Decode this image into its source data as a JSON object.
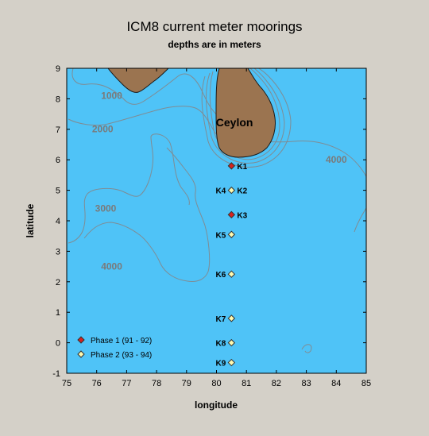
{
  "title": "ICM8 current meter moorings",
  "subtitle": "depths are in meters",
  "colors": {
    "sea": "#4fc3f7",
    "land": "#9b7450",
    "contour": "#7f8c94",
    "phase1": "#d8221e",
    "phase2": "#fffab0",
    "frame_bg": "#d4d0c8"
  },
  "chart_data": {
    "type": "scatter",
    "xlabel": "longitude",
    "ylabel": "latitude",
    "xlim": [
      75,
      85
    ],
    "ylim": [
      -1,
      9
    ],
    "x_ticks": [
      75,
      76,
      77,
      78,
      79,
      80,
      81,
      82,
      83,
      84,
      85
    ],
    "y_ticks": [
      -1,
      0,
      1,
      2,
      3,
      4,
      5,
      6,
      7,
      8,
      9
    ],
    "land_label": "Ceylon",
    "contour_labels": [
      {
        "text": "1000",
        "x": 76.5,
        "y": 8.0
      },
      {
        "text": "2000",
        "x": 76.2,
        "y": 6.9
      },
      {
        "text": "3000",
        "x": 76.3,
        "y": 4.3
      },
      {
        "text": "4000",
        "x": 76.5,
        "y": 2.4
      },
      {
        "text": "4000",
        "x": 84.0,
        "y": 5.9
      }
    ],
    "legend": [
      {
        "label": "Phase 1 (91 - 92)",
        "marker": "red-diamond"
      },
      {
        "label": "Phase 2 (93 - 94)",
        "marker": "yellow-diamond"
      }
    ],
    "series": [
      {
        "name": "Phase 1 (91 - 92)",
        "points": [
          {
            "label": "K1",
            "x": 80.5,
            "y": 5.8
          },
          {
            "label": "K3",
            "x": 80.5,
            "y": 4.2
          }
        ]
      },
      {
        "name": "Phase 2 (93 - 94)",
        "points": [
          {
            "label": "K4",
            "x": 80.5,
            "y": 5.0
          },
          {
            "label": "K2",
            "x": 80.5,
            "y": 5.0
          },
          {
            "label": "K5",
            "x": 80.5,
            "y": 3.55
          },
          {
            "label": "K6",
            "x": 80.5,
            "y": 2.25
          },
          {
            "label": "K7",
            "x": 80.5,
            "y": 0.8
          },
          {
            "label": "K8",
            "x": 80.5,
            "y": 0.0
          },
          {
            "label": "K9",
            "x": 80.5,
            "y": -0.65
          }
        ]
      }
    ]
  }
}
